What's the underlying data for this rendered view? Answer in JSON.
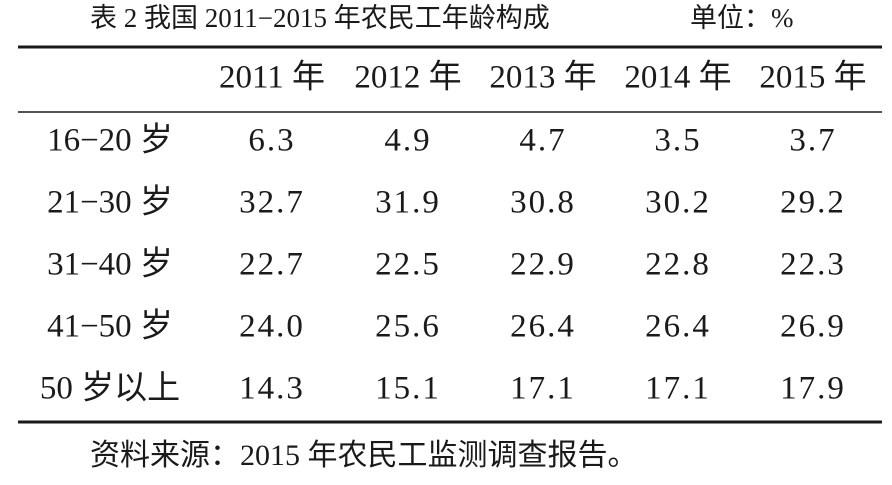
{
  "header": {
    "title": "表 2 我国 2011−2015 年农民工年龄构成",
    "unit": "单位：%"
  },
  "table": {
    "columns": [
      "2011 年",
      "2012 年",
      "2013 年",
      "2014 年",
      "2015 年"
    ],
    "rows": [
      [
        "16−20 岁",
        "6.3",
        "4.9",
        "4.7",
        "3.5",
        "3.7"
      ],
      [
        "21−30 岁",
        "32.7",
        "31.9",
        "30.8",
        "30.2",
        "29.2"
      ],
      [
        "31−40 岁",
        "22.7",
        "22.5",
        "22.9",
        "22.8",
        "22.3"
      ],
      [
        "41−50 岁",
        "24.0",
        "25.6",
        "26.4",
        "26.4",
        "26.9"
      ],
      [
        "50 岁以上",
        "14.3",
        "15.1",
        "17.1",
        "17.1",
        "17.9"
      ]
    ]
  },
  "footer": {
    "source": "资料来源：2015 年农民工监测调查报告。"
  }
}
